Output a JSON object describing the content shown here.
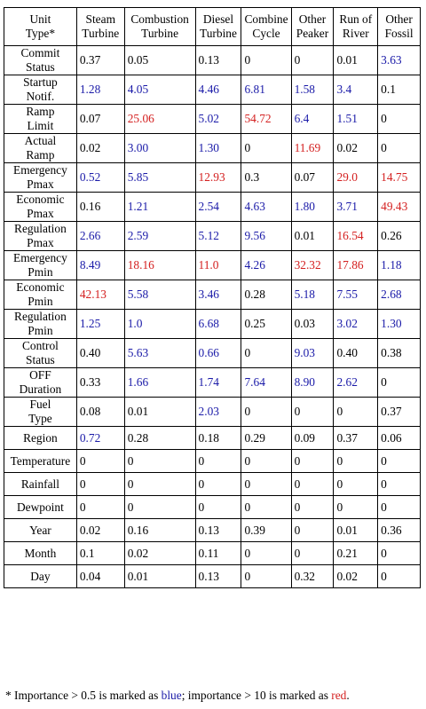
{
  "table": {
    "headers": [
      [
        "Unit",
        "Type*"
      ],
      [
        "Steam",
        "Turbine"
      ],
      [
        "Combustion",
        "Turbine"
      ],
      [
        "Diesel",
        "Turbine"
      ],
      [
        "Combine",
        "Cycle"
      ],
      [
        "Other",
        "Peaker"
      ],
      [
        "Run of",
        "River"
      ],
      [
        "Other",
        "Fossil"
      ]
    ],
    "rows": [
      {
        "label": [
          "Commit",
          "Status"
        ],
        "values": [
          "0.37",
          "0.05",
          "0.13",
          "0",
          "0",
          "0.01",
          "3.63"
        ]
      },
      {
        "label": [
          "Startup",
          "Notif."
        ],
        "values": [
          "1.28",
          "4.05",
          "4.46",
          "6.81",
          "1.58",
          "3.4",
          "0.1"
        ]
      },
      {
        "label": [
          "Ramp",
          "Limit"
        ],
        "values": [
          "0.07",
          "25.06",
          "5.02",
          "54.72",
          "6.4",
          "1.51",
          "0"
        ]
      },
      {
        "label": [
          "Actual",
          "Ramp"
        ],
        "values": [
          "0.02",
          "3.00",
          "1.30",
          "0",
          "11.69",
          "0.02",
          "0"
        ]
      },
      {
        "label": [
          "Emergency",
          "Pmax"
        ],
        "values": [
          "0.52",
          "5.85",
          "12.93",
          "0.3",
          "0.07",
          "29.0",
          "14.75"
        ]
      },
      {
        "label": [
          "Economic",
          "Pmax"
        ],
        "values": [
          "0.16",
          "1.21",
          "2.54",
          "4.63",
          "1.80",
          "3.71",
          "49.43"
        ]
      },
      {
        "label": [
          "Regulation",
          "Pmax"
        ],
        "values": [
          "2.66",
          "2.59",
          "5.12",
          "9.56",
          "0.01",
          "16.54",
          "0.26"
        ]
      },
      {
        "label": [
          "Emergency",
          "Pmin"
        ],
        "values": [
          "8.49",
          "18.16",
          "11.0",
          "4.26",
          "32.32",
          "17.86",
          "1.18"
        ]
      },
      {
        "label": [
          "Economic",
          "Pmin"
        ],
        "values": [
          "42.13",
          "5.58",
          "3.46",
          "0.28",
          "5.18",
          "7.55",
          "2.68"
        ]
      },
      {
        "label": [
          "Regulation",
          "Pmin"
        ],
        "values": [
          "1.25",
          "1.0",
          "6.68",
          "0.25",
          "0.03",
          "3.02",
          "1.30"
        ]
      },
      {
        "label": [
          "Control",
          "Status"
        ],
        "values": [
          "0.40",
          "5.63",
          "0.66",
          "0",
          "9.03",
          "0.40",
          "0.38"
        ]
      },
      {
        "label": [
          "OFF",
          "Duration"
        ],
        "values": [
          "0.33",
          "1.66",
          "1.74",
          "7.64",
          "8.90",
          "2.62",
          "0"
        ]
      },
      {
        "label": [
          "Fuel",
          "Type"
        ],
        "values": [
          "0.08",
          "0.01",
          "2.03",
          "0",
          "0",
          "0",
          "0.37"
        ]
      },
      {
        "label": [
          "Region"
        ],
        "values": [
          "0.72",
          "0.28",
          "0.18",
          "0.29",
          "0.09",
          "0.37",
          "0.06"
        ]
      },
      {
        "label": [
          "Temperature"
        ],
        "values": [
          "0",
          "0",
          "0",
          "0",
          "0",
          "0",
          "0"
        ]
      },
      {
        "label": [
          "Rainfall"
        ],
        "values": [
          "0",
          "0",
          "0",
          "0",
          "0",
          "0",
          "0"
        ]
      },
      {
        "label": [
          "Dewpoint"
        ],
        "values": [
          "0",
          "0",
          "0",
          "0",
          "0",
          "0",
          "0"
        ]
      },
      {
        "label": [
          "Year"
        ],
        "values": [
          "0.02",
          "0.16",
          "0.13",
          "0.39",
          "0",
          "0.01",
          "0.36"
        ]
      },
      {
        "label": [
          "Month"
        ],
        "values": [
          "0.1",
          "0.02",
          "0.11",
          "0",
          "0",
          "0.21",
          "0"
        ]
      },
      {
        "label": [
          "Day"
        ],
        "values": [
          "0.04",
          "0.01",
          "0.13",
          "0",
          "0.32",
          "0.02",
          "0"
        ]
      }
    ]
  },
  "footnote": {
    "prefix": "* Importance > 0.5 is marked as ",
    "blue_word": "blue",
    "middle": "; importance > 10 is marked as ",
    "red_word": "red",
    "suffix": "."
  },
  "colors": {
    "blue": "#1a1aa8",
    "red": "#d42020"
  }
}
